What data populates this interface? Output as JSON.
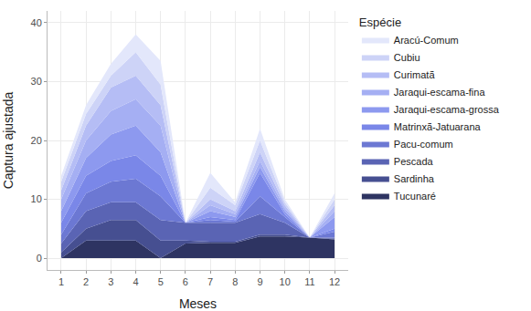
{
  "chart_data": {
    "type": "area",
    "stacked": true,
    "x_label": "Meses",
    "y_label": "Captura ajustada",
    "legend_title": "Espécie",
    "legend": "right",
    "grid": true,
    "x": [
      1,
      2,
      3,
      4,
      5,
      6,
      7,
      8,
      9,
      10,
      11,
      12
    ],
    "xlim": [
      0.45,
      12.55
    ],
    "xticks": [
      1,
      2,
      3,
      4,
      5,
      6,
      7,
      8,
      9,
      10,
      11,
      12
    ],
    "ylim": [
      -2,
      42
    ],
    "yticks": [
      0,
      10,
      20,
      30,
      40
    ],
    "series": [
      {
        "name": "Aracú-Comum",
        "color": "#e3e7fb",
        "values": [
          1,
          1.5,
          2,
          3,
          4,
          0,
          2.5,
          0.5,
          2,
          0.5,
          0,
          1
        ]
      },
      {
        "name": "Cubiu",
        "color": "#cdd3f7",
        "values": [
          1.5,
          2,
          2,
          4,
          3.5,
          0,
          2,
          1,
          2,
          0.5,
          0,
          1
        ]
      },
      {
        "name": "Curimatã",
        "color": "#b5bdf5",
        "values": [
          1.5,
          2.5,
          4,
          4,
          3.5,
          0,
          1,
          0.5,
          1.5,
          0.5,
          0,
          1
        ]
      },
      {
        "name": "Jaraqui-escama-fina",
        "color": "#a5aff3",
        "values": [
          2,
          3,
          4,
          4.5,
          4.5,
          0,
          1,
          0.5,
          1,
          0.5,
          0,
          1
        ]
      },
      {
        "name": "Jaraqui-escama-grossa",
        "color": "#8d99ef",
        "values": [
          2,
          3,
          4.5,
          5,
          4,
          0,
          1,
          0.5,
          1,
          0.5,
          0,
          2
        ]
      },
      {
        "name": "Matrinxã-Jatuarana",
        "color": "#7a87e8",
        "values": [
          2,
          3,
          3.5,
          4,
          3.5,
          0,
          0.5,
          0.3,
          4,
          0.5,
          0,
          0.5
        ]
      },
      {
        "name": "Pacu-comum",
        "color": "#6c78d3",
        "values": [
          1.5,
          3,
          3.5,
          4,
          4,
          0,
          0.5,
          0.2,
          3,
          1,
          0,
          1
        ]
      },
      {
        "name": "Pescada",
        "color": "#5a64b4",
        "values": [
          1.5,
          3,
          3,
          3,
          3.5,
          3,
          3.2,
          3.2,
          3.5,
          2,
          0,
          0.2
        ]
      },
      {
        "name": "Sardinha",
        "color": "#464f91",
        "values": [
          1,
          2,
          3.5,
          3.5,
          3,
          0.5,
          0.2,
          0.2,
          0.3,
          0.3,
          0,
          0.1
        ]
      },
      {
        "name": "Tucunaré",
        "color": "#2e3462",
        "values": [
          0,
          3,
          3,
          3,
          0,
          2.5,
          2.6,
          2.6,
          3.7,
          3.7,
          3.5,
          3.2
        ]
      }
    ]
  }
}
